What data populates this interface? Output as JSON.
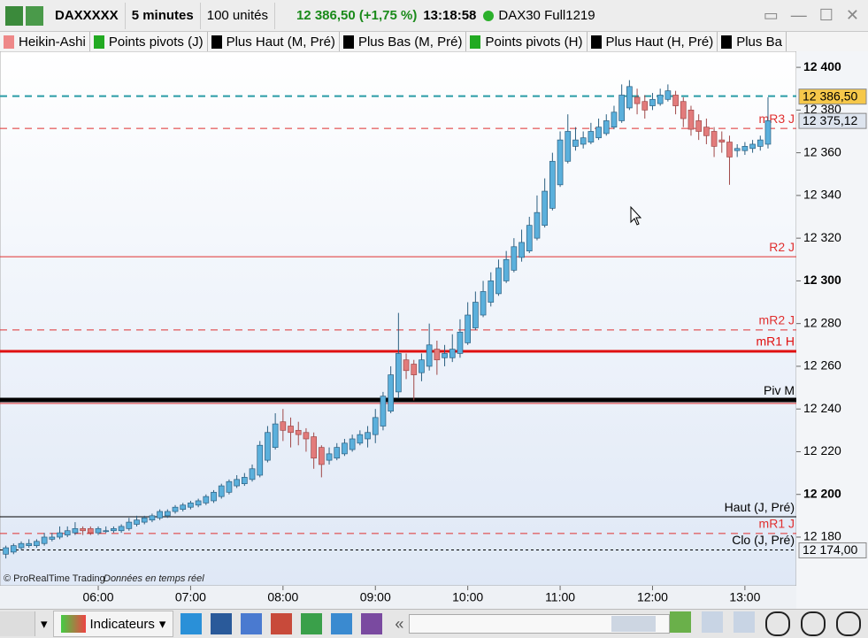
{
  "toolbar": {
    "instrument": "DAXXXXX",
    "timeframe": "5 minutes",
    "units": "100 unités",
    "quote": "12 386,50 (+1,75 %)",
    "time": "13:18:58",
    "feed": "DAX30 Full1219"
  },
  "indicator_tabs": [
    "Heikin-Ashi",
    "Points pivots (J)",
    "Plus Haut (M, Pré)",
    "Plus Bas (M, Pré)",
    "Points pivots (H)",
    "Plus Haut (H, Pré)",
    "Plus Ba"
  ],
  "bottom_toolbar": {
    "indicators": "Indicateurs",
    "collapse": "«"
  },
  "chart_data": {
    "type": "candlestick",
    "credit": "© ProRealTime Trading",
    "credit_note": "Données en temps réel",
    "up_color": "#5bb0dc",
    "down_color": "#e27b7b",
    "xlim": [
      296.2,
      813.4
    ],
    "xticks": [
      {
        "value": 360,
        "label": "06:00"
      },
      {
        "value": 420,
        "label": "07:00"
      },
      {
        "value": 480,
        "label": "08:00"
      },
      {
        "value": 540,
        "label": "09:00"
      },
      {
        "value": 600,
        "label": "10:00"
      },
      {
        "value": 660,
        "label": "11:00"
      },
      {
        "value": 720,
        "label": "12:00"
      },
      {
        "value": 780,
        "label": "13:00"
      }
    ],
    "ylim": [
      12157.2,
      12407.5
    ],
    "yticks": [
      {
        "value": 12180,
        "label": "12 180"
      },
      {
        "value": 12200,
        "label": "12 200"
      },
      {
        "value": 12220,
        "label": "12 220"
      },
      {
        "value": 12240,
        "label": "12 240"
      },
      {
        "value": 12260,
        "label": "12 260"
      },
      {
        "value": 12280,
        "label": "12 280"
      },
      {
        "value": 12300,
        "label": "12 300"
      },
      {
        "value": 12320,
        "label": "12 320"
      },
      {
        "value": 12340,
        "label": "12 340"
      },
      {
        "value": 12360,
        "label": "12 360"
      },
      {
        "value": 12380,
        "label": "12 380"
      },
      {
        "value": 12400,
        "label": "12 400"
      }
    ],
    "x": [
      300,
      305,
      310,
      315,
      320,
      325,
      330,
      335,
      340,
      345,
      350,
      355,
      360,
      365,
      370,
      375,
      380,
      385,
      390,
      395,
      400,
      405,
      410,
      415,
      420,
      425,
      430,
      435,
      440,
      445,
      450,
      455,
      460,
      465,
      470,
      475,
      480,
      485,
      490,
      495,
      500,
      505,
      510,
      515,
      520,
      525,
      530,
      535,
      540,
      545,
      550,
      555,
      560,
      565,
      570,
      575,
      580,
      585,
      590,
      595,
      600,
      605,
      610,
      615,
      620,
      625,
      630,
      635,
      640,
      645,
      650,
      655,
      660,
      665,
      670,
      675,
      680,
      685,
      690,
      695,
      700,
      705,
      710,
      715,
      720,
      725,
      730,
      735,
      740,
      745,
      750,
      755,
      760,
      765,
      770,
      775,
      780,
      785,
      790,
      795
    ],
    "ohlc": [
      [
        12172,
        12176,
        12170,
        12175
      ],
      [
        12173,
        12177,
        12172,
        12176
      ],
      [
        12175,
        12178,
        12174,
        12177
      ],
      [
        12176,
        12179,
        12175,
        12177
      ],
      [
        12176,
        12179,
        12175,
        12178
      ],
      [
        12177,
        12182,
        12176,
        12180
      ],
      [
        12179,
        12182,
        12178,
        12180
      ],
      [
        12180,
        12185,
        12179,
        12182
      ],
      [
        12181,
        12185,
        12180,
        12183
      ],
      [
        12182,
        12187,
        12181,
        12184
      ],
      [
        12184,
        12185,
        12181,
        12183
      ],
      [
        12184,
        12185,
        12181,
        12182
      ],
      [
        12182,
        12185,
        12181,
        12184
      ],
      [
        12183,
        12185,
        12182,
        12183
      ],
      [
        12183,
        12185,
        12182,
        12184
      ],
      [
        12183,
        12186,
        12182,
        12185
      ],
      [
        12184,
        12189,
        12183,
        12187
      ],
      [
        12186,
        12190,
        12185,
        12188
      ],
      [
        12187,
        12190,
        12186,
        12189
      ],
      [
        12188,
        12191,
        12187,
        12190
      ],
      [
        12189,
        12193,
        12188,
        12192
      ],
      [
        12190,
        12193,
        12189,
        12192
      ],
      [
        12192,
        12195,
        12191,
        12194
      ],
      [
        12193,
        12196,
        12192,
        12195
      ],
      [
        12194,
        12197,
        12193,
        12196
      ],
      [
        12195,
        12198,
        12194,
        12197
      ],
      [
        12196,
        12200,
        12195,
        12199
      ],
      [
        12197,
        12202,
        12196,
        12201
      ],
      [
        12199,
        12205,
        12198,
        12204
      ],
      [
        12201,
        12207,
        12200,
        12206
      ],
      [
        12204,
        12209,
        12203,
        12207
      ],
      [
        12205,
        12210,
        12204,
        12208
      ],
      [
        12207,
        12214,
        12206,
        12212
      ],
      [
        12209,
        12225,
        12208,
        12223
      ],
      [
        12216,
        12232,
        12215,
        12229
      ],
      [
        12222,
        12238,
        12221,
        12233
      ],
      [
        12234,
        12240,
        12225,
        12230
      ],
      [
        12232,
        12236,
        12222,
        12229
      ],
      [
        12230,
        12234,
        12223,
        12228
      ],
      [
        12229,
        12231,
        12220,
        12226
      ],
      [
        12227,
        12229,
        12212,
        12217
      ],
      [
        12222,
        12223,
        12208,
        12214
      ],
      [
        12216,
        12222,
        12214,
        12219
      ],
      [
        12217,
        12224,
        12216,
        12222
      ],
      [
        12219,
        12226,
        12218,
        12224
      ],
      [
        12221,
        12228,
        12220,
        12226
      ],
      [
        12224,
        12230,
        12223,
        12228
      ],
      [
        12226,
        12232,
        12222,
        12229
      ],
      [
        12228,
        12240,
        12224,
        12236
      ],
      [
        12232,
        12248,
        12230,
        12246
      ],
      [
        12239,
        12260,
        12238,
        12256
      ],
      [
        12248,
        12285,
        12245,
        12266
      ],
      [
        12263,
        12266,
        12254,
        12258
      ],
      [
        12261,
        12263,
        12244,
        12256
      ],
      [
        12257,
        12266,
        12253,
        12263
      ],
      [
        12260,
        12280,
        12258,
        12270
      ],
      [
        12268,
        12272,
        12256,
        12263
      ],
      [
        12264,
        12270,
        12260,
        12266
      ],
      [
        12264,
        12275,
        12262,
        12268
      ],
      [
        12266,
        12282,
        12264,
        12276
      ],
      [
        12271,
        12290,
        12270,
        12284
      ],
      [
        12278,
        12295,
        12277,
        12290
      ],
      [
        12284,
        12300,
        12283,
        12295
      ],
      [
        12290,
        12304,
        12288,
        12300
      ],
      [
        12294,
        12310,
        12293,
        12306
      ],
      [
        12300,
        12314,
        12299,
        12310
      ],
      [
        12305,
        12320,
        12304,
        12316
      ],
      [
        12311,
        12324,
        12309,
        12318
      ],
      [
        12314,
        12330,
        12313,
        12326
      ],
      [
        12320,
        12340,
        12319,
        12332
      ],
      [
        12326,
        12348,
        12325,
        12342
      ],
      [
        12334,
        12360,
        12333,
        12356
      ],
      [
        12345,
        12370,
        12344,
        12366
      ],
      [
        12356,
        12378,
        12355,
        12370
      ],
      [
        12363,
        12372,
        12361,
        12366
      ],
      [
        12364,
        12370,
        12362,
        12367
      ],
      [
        12365,
        12374,
        12364,
        12370
      ],
      [
        12367,
        12376,
        12366,
        12372
      ],
      [
        12369,
        12378,
        12368,
        12375
      ],
      [
        12372,
        12382,
        12371,
        12379
      ],
      [
        12375,
        12392,
        12374,
        12387
      ],
      [
        12381,
        12394,
        12380,
        12391
      ],
      [
        12386,
        12390,
        12378,
        12383
      ],
      [
        12384,
        12387,
        12376,
        12380
      ],
      [
        12382,
        12388,
        12380,
        12385
      ],
      [
        12383,
        12390,
        12382,
        12387
      ],
      [
        12385,
        12392,
        12384,
        12389
      ],
      [
        12387,
        12389,
        12378,
        12382
      ],
      [
        12384,
        12386,
        12372,
        12376
      ],
      [
        12380,
        12382,
        12368,
        12371
      ],
      [
        12375,
        12378,
        12366,
        12370
      ],
      [
        12372,
        12376,
        12364,
        12368
      ],
      [
        12370,
        12372,
        12358,
        12363
      ],
      [
        12366,
        12370,
        12360,
        12365
      ],
      [
        12365,
        12368,
        12345,
        12358
      ],
      [
        12361,
        12364,
        12358,
        12362
      ],
      [
        12361,
        12365,
        12359,
        12363
      ],
      [
        12362,
        12366,
        12360,
        12364
      ],
      [
        12363,
        12368,
        12361,
        12366
      ],
      [
        12364,
        12386,
        12362,
        12375
      ]
    ],
    "levels": [
      {
        "value": 12386.5,
        "color": "#2a9ca6",
        "style": "dashed",
        "width": 2
      },
      {
        "label": "mR3 J",
        "value": 12371.4,
        "color": "#e03030",
        "style": "dashed",
        "width": 1
      },
      {
        "label": "R2 J",
        "value": 12311.3,
        "color": "#e03030",
        "style": "solid",
        "width": 1
      },
      {
        "label": "mR2 J",
        "value": 12277,
        "color": "#e03030",
        "style": "dashed",
        "width": 1
      },
      {
        "label": "mR1 H",
        "value": 12267,
        "color": "#e01010",
        "style": "solid",
        "width": 3
      },
      {
        "label": "Piv M",
        "value": 12244.2,
        "color": "#000000",
        "style": "solid",
        "width": 5
      },
      {
        "value": 12242.6,
        "color": "#e03030",
        "style": "solid",
        "width": 1
      },
      {
        "label": "Haut (J, Pré)",
        "value": 12189.5,
        "color": "#000000",
        "style": "solid",
        "width": 1
      },
      {
        "label": "mR1 J",
        "value": 12181.7,
        "color": "#e03030",
        "style": "dashed",
        "width": 1
      },
      {
        "label": "Clo (J, Pré)",
        "value": 12174,
        "color": "#000000",
        "style": "dotted",
        "width": 1
      }
    ],
    "price_tags": [
      {
        "value": 12386.5,
        "label": "12 386,50",
        "color": "#f6c84a"
      },
      {
        "value": 12375.12,
        "label": "12 375,12",
        "color": "#dde4ee"
      },
      {
        "value": 12174,
        "label": "12 174,00",
        "color": "#eef1f5"
      }
    ]
  }
}
